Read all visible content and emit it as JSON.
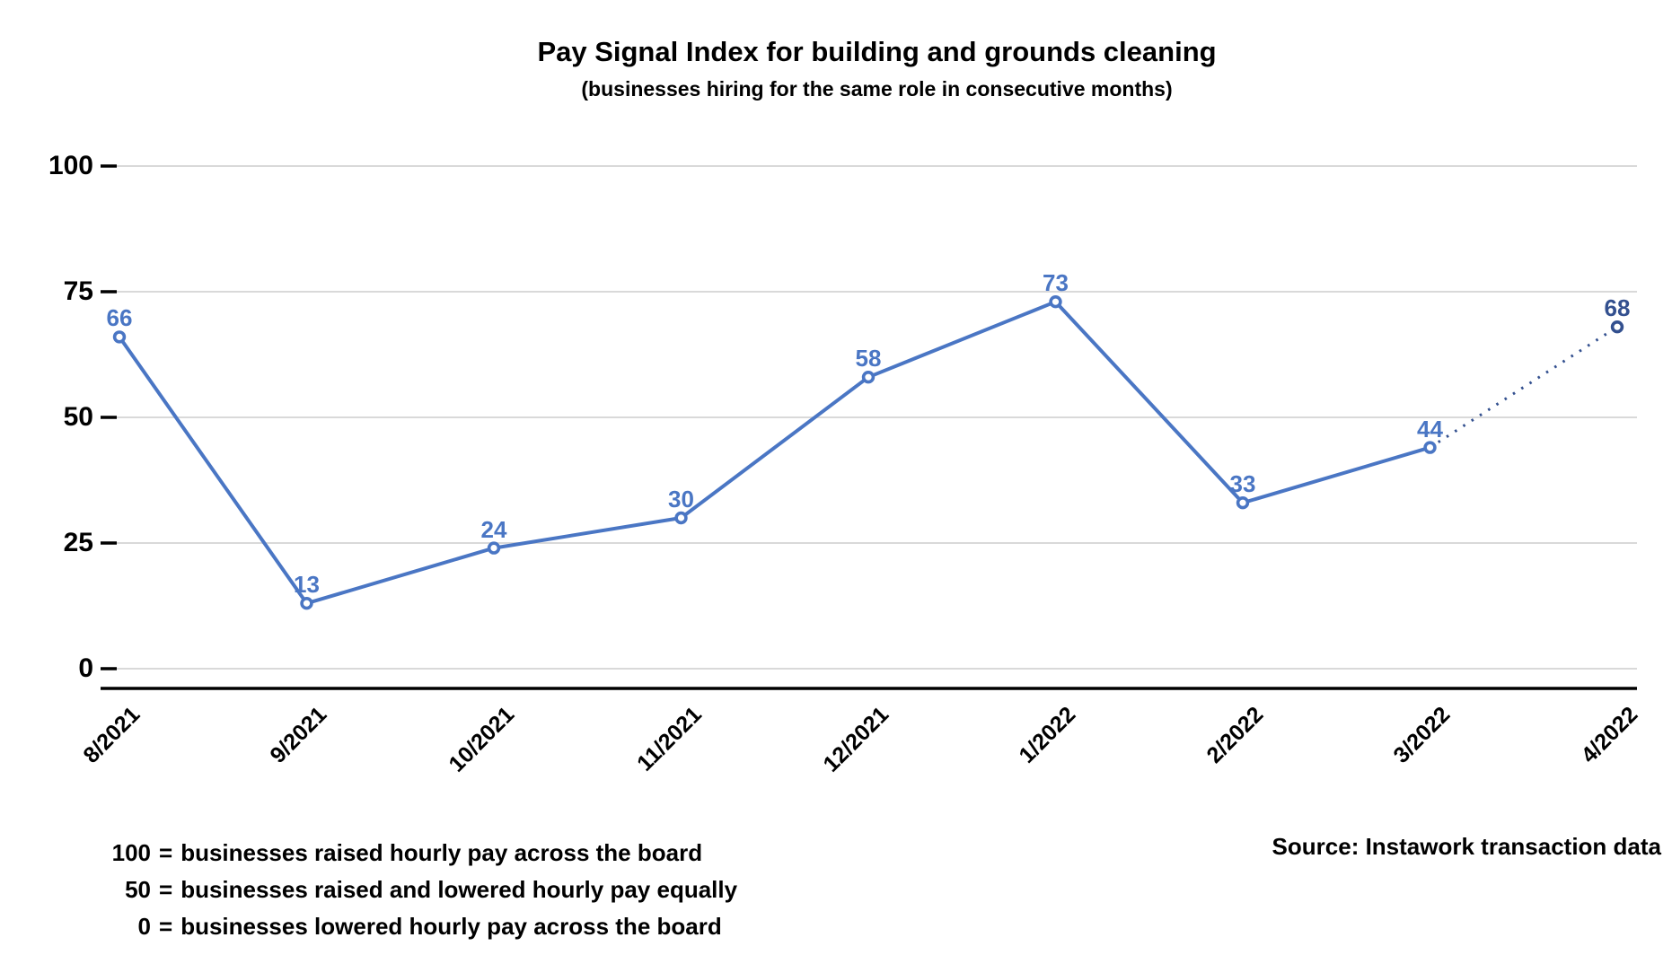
{
  "chart_data": {
    "type": "line",
    "title": "Pay Signal Index for building and grounds cleaning",
    "subtitle": "(businesses hiring for the same role in consecutive months)",
    "categories": [
      "8/2021",
      "9/2021",
      "10/2021",
      "11/2021",
      "12/2021",
      "1/2022",
      "2/2022",
      "3/2022",
      "4/2022"
    ],
    "values": [
      66,
      13,
      24,
      30,
      58,
      73,
      33,
      44,
      68
    ],
    "data_labels": [
      "66",
      "13",
      "24",
      "30",
      "58",
      "73",
      "33",
      "44",
      "68"
    ],
    "solid_segment_end_index": 7,
    "last_segment_dotted": true,
    "ylim": [
      0,
      100
    ],
    "yticks": [
      0,
      25,
      50,
      75,
      100
    ],
    "ytick_labels": [
      "0",
      "25",
      "50",
      "75",
      "100"
    ],
    "grid": true,
    "legend": "none",
    "line_color": "#4a76c4",
    "marker_fill": "#ffffff",
    "projection_color": "#33508f",
    "gridline_color": "#d9d9d9",
    "axis_color": "#000000",
    "text_color": "#000000"
  },
  "footnotes": {
    "separator": "=",
    "lines": [
      {
        "value": "100",
        "text": "businesses raised hourly pay across the board"
      },
      {
        "value": "50",
        "text": "businesses raised and lowered hourly pay equally"
      },
      {
        "value": "0",
        "text": "businesses lowered hourly pay across the board"
      }
    ]
  },
  "source": {
    "label": "Source: Instawork transaction data"
  }
}
